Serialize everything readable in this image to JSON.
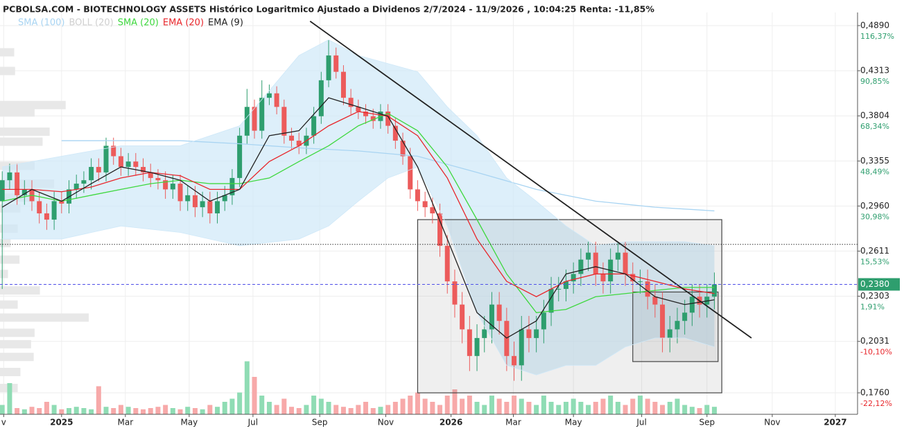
{
  "chart_data": {
    "type": "candlestick",
    "title": "PCBOLSA.COM - BIOTECHNOLOGY ASSETS Histórico Logaritmico Ajustado a Dividenos 2/7/2024 - 11/9/2026 , 10:04:25 Renta: -11,85%",
    "yscale": "log",
    "grid": true,
    "xlim": [
      -0.3,
      115.3
    ],
    "xticks": [
      {
        "value": 0.2,
        "label": "v"
      },
      {
        "value": 8,
        "label": "2025"
      },
      {
        "value": 16.6,
        "label": "Mar"
      },
      {
        "value": 25.2,
        "label": "May"
      },
      {
        "value": 33.8,
        "label": "Jul"
      },
      {
        "value": 42.8,
        "label": "Sep"
      },
      {
        "value": 51.7,
        "label": "Nov"
      },
      {
        "value": 60.5,
        "label": "2026"
      },
      {
        "value": 68.9,
        "label": "Mar"
      },
      {
        "value": 77,
        "label": "May"
      },
      {
        "value": 86.2,
        "label": "Jul"
      },
      {
        "value": 95,
        "label": "Sep"
      },
      {
        "value": 103.8,
        "label": "Nov"
      },
      {
        "value": 112.3,
        "label": "2027"
      }
    ],
    "ylim": [
      0.1658,
      0.5072
    ],
    "yticks": [
      {
        "value": 0.489,
        "label": "0,4890",
        "change": "116,37%"
      },
      {
        "value": 0.4313,
        "label": "0,4313",
        "change": "90,85%"
      },
      {
        "value": 0.3804,
        "label": "0,3804",
        "change": "68,34%"
      },
      {
        "value": 0.3355,
        "label": "0,3355",
        "change": "48,49%"
      },
      {
        "value": 0.296,
        "label": "0,2960",
        "change": "30,98%"
      },
      {
        "value": 0.2611,
        "label": "0,2611",
        "change": "15,53%"
      },
      {
        "value": 0.2303,
        "label": "0,2303",
        "change": "1,91%"
      },
      {
        "value": 0.2031,
        "label": "0,2031",
        "change": "-10,10%"
      },
      {
        "value": 0.176,
        "label": "0,1760",
        "change": "-22,12%"
      }
    ],
    "colors": {
      "up": "#2e9e6e",
      "down": "#ec5b5b",
      "up_volume": "#8fdcb4",
      "down_volume": "#f7a9a9"
    },
    "open": [
      0.3,
      0.318,
      0.325,
      0.305,
      0.31,
      0.3,
      0.29,
      0.285,
      0.3,
      0.298,
      0.31,
      0.315,
      0.318,
      0.33,
      0.325,
      0.35,
      0.34,
      0.33,
      0.335,
      0.33,
      0.325,
      0.32,
      0.318,
      0.31,
      0.315,
      0.3,
      0.305,
      0.295,
      0.3,
      0.29,
      0.3,
      0.305,
      0.32,
      0.36,
      0.39,
      0.365,
      0.4,
      0.405,
      0.39,
      0.36,
      0.355,
      0.35,
      0.36,
      0.38,
      0.42,
      0.45,
      0.43,
      0.4,
      0.39,
      0.385,
      0.38,
      0.375,
      0.385,
      0.37,
      0.355,
      0.34,
      0.31,
      0.3,
      0.295,
      0.29,
      0.265,
      0.24,
      0.225,
      0.21,
      0.195,
      0.205,
      0.21,
      0.225,
      0.215,
      0.195,
      0.19,
      0.21,
      0.205,
      0.21,
      0.22,
      0.235,
      0.235,
      0.24,
      0.245,
      0.255,
      0.26,
      0.245,
      0.24,
      0.255,
      0.26,
      0.245,
      0.24,
      0.24,
      0.23,
      0.225,
      0.205,
      0.21,
      0.215,
      0.22,
      0.23,
      0.225,
      0.23
    ],
    "high": [
      0.326,
      0.333,
      0.333,
      0.318,
      0.318,
      0.308,
      0.298,
      0.308,
      0.308,
      0.318,
      0.323,
      0.326,
      0.338,
      0.338,
      0.358,
      0.358,
      0.348,
      0.343,
      0.343,
      0.338,
      0.333,
      0.328,
      0.326,
      0.323,
      0.323,
      0.313,
      0.313,
      0.308,
      0.308,
      0.308,
      0.313,
      0.328,
      0.368,
      0.41,
      0.398,
      0.42,
      0.415,
      0.413,
      0.398,
      0.368,
      0.363,
      0.368,
      0.39,
      0.43,
      0.47,
      0.46,
      0.438,
      0.41,
      0.398,
      0.393,
      0.388,
      0.393,
      0.393,
      0.378,
      0.363,
      0.348,
      0.318,
      0.308,
      0.303,
      0.298,
      0.273,
      0.248,
      0.233,
      0.218,
      0.213,
      0.218,
      0.233,
      0.233,
      0.223,
      0.203,
      0.218,
      0.218,
      0.218,
      0.228,
      0.243,
      0.243,
      0.248,
      0.253,
      0.263,
      0.268,
      0.268,
      0.253,
      0.263,
      0.268,
      0.268,
      0.253,
      0.248,
      0.248,
      0.238,
      0.233,
      0.218,
      0.223,
      0.228,
      0.238,
      0.238,
      0.238,
      0.246
    ],
    "low": [
      0.235,
      0.31,
      0.297,
      0.297,
      0.292,
      0.282,
      0.277,
      0.277,
      0.29,
      0.29,
      0.302,
      0.307,
      0.31,
      0.317,
      0.317,
      0.332,
      0.322,
      0.322,
      0.322,
      0.317,
      0.312,
      0.31,
      0.302,
      0.302,
      0.292,
      0.292,
      0.287,
      0.287,
      0.282,
      0.282,
      0.292,
      0.297,
      0.312,
      0.352,
      0.357,
      0.357,
      0.392,
      0.382,
      0.352,
      0.347,
      0.342,
      0.342,
      0.352,
      0.372,
      0.412,
      0.422,
      0.392,
      0.382,
      0.377,
      0.372,
      0.367,
      0.367,
      0.362,
      0.347,
      0.332,
      0.302,
      0.292,
      0.287,
      0.282,
      0.257,
      0.232,
      0.217,
      0.202,
      0.187,
      0.187,
      0.197,
      0.202,
      0.207,
      0.187,
      0.182,
      0.182,
      0.197,
      0.197,
      0.202,
      0.212,
      0.227,
      0.227,
      0.232,
      0.237,
      0.247,
      0.237,
      0.232,
      0.232,
      0.247,
      0.237,
      0.232,
      0.232,
      0.222,
      0.217,
      0.197,
      0.197,
      0.202,
      0.207,
      0.212,
      0.217,
      0.217,
      0.222
    ],
    "close": [
      0.318,
      0.325,
      0.305,
      0.31,
      0.3,
      0.29,
      0.285,
      0.3,
      0.298,
      0.31,
      0.315,
      0.318,
      0.33,
      0.325,
      0.35,
      0.34,
      0.33,
      0.335,
      0.33,
      0.325,
      0.32,
      0.318,
      0.31,
      0.315,
      0.3,
      0.305,
      0.295,
      0.3,
      0.29,
      0.3,
      0.305,
      0.32,
      0.36,
      0.39,
      0.365,
      0.4,
      0.405,
      0.39,
      0.36,
      0.355,
      0.35,
      0.36,
      0.38,
      0.42,
      0.45,
      0.43,
      0.4,
      0.39,
      0.385,
      0.38,
      0.375,
      0.385,
      0.37,
      0.355,
      0.34,
      0.31,
      0.3,
      0.295,
      0.29,
      0.265,
      0.24,
      0.225,
      0.21,
      0.195,
      0.205,
      0.21,
      0.225,
      0.215,
      0.195,
      0.19,
      0.21,
      0.205,
      0.21,
      0.22,
      0.235,
      0.235,
      0.24,
      0.245,
      0.255,
      0.26,
      0.245,
      0.24,
      0.255,
      0.26,
      0.245,
      0.24,
      0.24,
      0.23,
      0.225,
      0.205,
      0.21,
      0.215,
      0.22,
      0.23,
      0.225,
      0.23,
      0.238
    ],
    "volume_lim": [
      0,
      100
    ],
    "volume": [
      15,
      50,
      10,
      8,
      12,
      10,
      20,
      15,
      8,
      10,
      12,
      10,
      8,
      45,
      12,
      10,
      15,
      12,
      10,
      8,
      10,
      12,
      15,
      10,
      8,
      12,
      10,
      8,
      15,
      12,
      20,
      25,
      35,
      85,
      60,
      30,
      20,
      15,
      25,
      12,
      10,
      15,
      30,
      25,
      20,
      15,
      12,
      10,
      15,
      20,
      10,
      12,
      15,
      20,
      25,
      30,
      35,
      25,
      20,
      15,
      30,
      40,
      25,
      30,
      20,
      15,
      30,
      25,
      20,
      30,
      25,
      20,
      15,
      30,
      20,
      15,
      20,
      25,
      20,
      15,
      20,
      25,
      30,
      20,
      15,
      25,
      30,
      25,
      20,
      15,
      20,
      25,
      15,
      12,
      10,
      15,
      12
    ],
    "series": [
      {
        "name": "SMA (100)",
        "kind": "line",
        "color": "#a8d4f2",
        "x": [
          8,
          16,
          24,
          32,
          40,
          48,
          56,
          64,
          72,
          80,
          88,
          96
        ],
        "values": [
          0.355,
          0.355,
          0.355,
          0.352,
          0.348,
          0.345,
          0.34,
          0.325,
          0.31,
          0.3,
          0.295,
          0.292
        ]
      },
      {
        "name": "BOLL (20)",
        "kind": "band",
        "color": "#cfe8f8",
        "x": [
          0,
          8,
          16,
          24,
          32,
          40,
          44,
          48,
          52,
          56,
          60,
          64,
          68,
          72,
          76,
          80,
          84,
          88,
          92,
          96
        ],
        "upper": [
          0.33,
          0.34,
          0.35,
          0.35,
          0.37,
          0.45,
          0.47,
          0.45,
          0.44,
          0.43,
          0.39,
          0.36,
          0.32,
          0.3,
          0.28,
          0.265,
          0.268,
          0.268,
          0.268,
          0.265
        ],
        "lower": [
          0.27,
          0.27,
          0.28,
          0.275,
          0.265,
          0.27,
          0.28,
          0.3,
          0.32,
          0.33,
          0.28,
          0.22,
          0.19,
          0.185,
          0.19,
          0.19,
          0.2,
          0.205,
          0.205,
          0.2
        ]
      },
      {
        "name": "SMA (20)",
        "kind": "line",
        "color": "#3ed83e",
        "x": [
          0,
          4,
          8,
          12,
          16,
          20,
          24,
          28,
          32,
          36,
          40,
          44,
          48,
          52,
          56,
          60,
          64,
          68,
          72,
          76,
          80,
          84,
          88,
          92,
          96
        ],
        "values": [
          0.3,
          0.305,
          0.3,
          0.305,
          0.31,
          0.315,
          0.318,
          0.315,
          0.315,
          0.32,
          0.335,
          0.35,
          0.37,
          0.383,
          0.365,
          0.33,
          0.285,
          0.245,
          0.22,
          0.222,
          0.23,
          0.232,
          0.234,
          0.236,
          0.236
        ]
      },
      {
        "name": "EMA (20)",
        "kind": "line",
        "color": "#e8262b",
        "x": [
          0,
          4,
          8,
          12,
          16,
          20,
          24,
          28,
          32,
          36,
          40,
          44,
          48,
          52,
          56,
          60,
          64,
          68,
          72,
          76,
          80,
          84,
          88,
          92,
          96
        ],
        "values": [
          0.31,
          0.31,
          0.308,
          0.312,
          0.32,
          0.325,
          0.322,
          0.31,
          0.31,
          0.335,
          0.35,
          0.37,
          0.385,
          0.38,
          0.36,
          0.32,
          0.27,
          0.24,
          0.23,
          0.24,
          0.245,
          0.245,
          0.24,
          0.235,
          0.232
        ]
      },
      {
        "name": "EMA (9)",
        "kind": "line",
        "color": "#222222",
        "x": [
          0,
          4,
          8,
          12,
          16,
          20,
          24,
          28,
          32,
          36,
          40,
          44,
          48,
          52,
          56,
          60,
          64,
          68,
          72,
          76,
          80,
          84,
          88,
          92,
          96
        ],
        "values": [
          0.295,
          0.31,
          0.3,
          0.315,
          0.33,
          0.325,
          0.318,
          0.3,
          0.31,
          0.36,
          0.365,
          0.4,
          0.39,
          0.38,
          0.33,
          0.27,
          0.22,
          0.205,
          0.215,
          0.245,
          0.25,
          0.245,
          0.23,
          0.225,
          0.228
        ]
      }
    ],
    "volume_profile": {
      "color": "#e8e8e8",
      "lim": [
        0,
        100
      ],
      "prices": [
        0.454,
        0.431,
        0.392,
        0.384,
        0.364,
        0.354,
        0.331,
        0.315,
        0.303,
        0.294,
        0.278,
        0.267,
        0.255,
        0.245,
        0.234,
        0.225,
        0.217,
        0.208,
        0.2015,
        0.1945,
        0.1865,
        0.1784
      ],
      "values": [
        16,
        17,
        74,
        39,
        56,
        48,
        39,
        61,
        39,
        23,
        20,
        12,
        22,
        9,
        45,
        20,
        100,
        39,
        35,
        38,
        23,
        20
      ]
    },
    "trendline": {
      "color": "#222222",
      "x": [
        41.5,
        101
      ],
      "values": [
        0.495,
        0.205
      ]
    },
    "boxes": [
      {
        "x": [
          56,
          97
        ],
        "values": [
          0.176,
          0.285
        ]
      },
      {
        "x": [
          85,
          96.5
        ],
        "values": [
          0.192,
          0.233
        ]
      }
    ],
    "reference_line": {
      "value": 0.266
    },
    "price_line": {
      "value": 0.238,
      "label": "0,2380",
      "color": "#4f4fe8",
      "label_color": "#2e9e6e"
    }
  }
}
